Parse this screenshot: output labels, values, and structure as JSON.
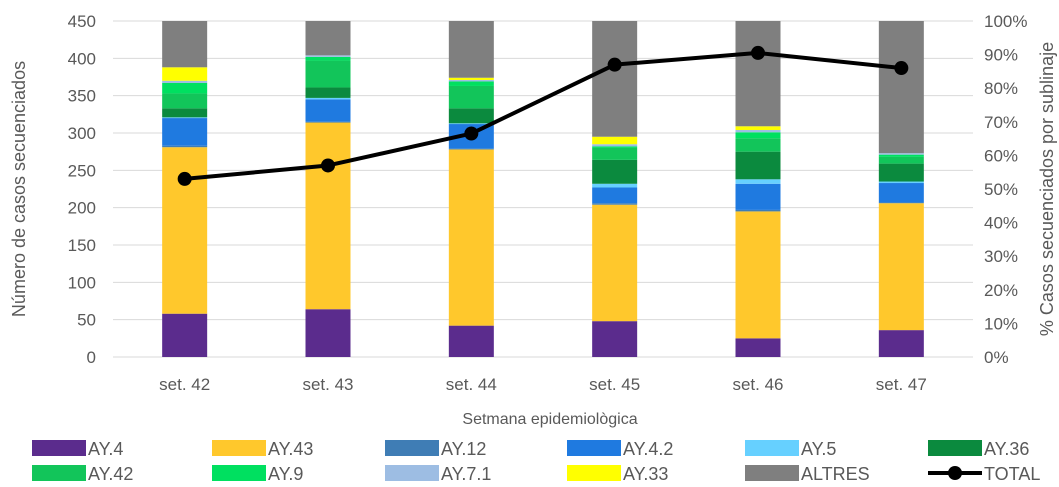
{
  "chart_data": {
    "type": "bar",
    "stacked": true,
    "categories": [
      "set. 42",
      "set. 43",
      "set. 44",
      "set. 45",
      "set. 46",
      "set. 47"
    ],
    "xlabel": "Setmana epidemiològica",
    "ylabel": "Número de casos secuenciados",
    "y2label": "% Casos secuenciados por sublinaje",
    "ylim": [
      0,
      450
    ],
    "yticks": [
      "0",
      "50",
      "100",
      "150",
      "200",
      "250",
      "300",
      "350",
      "400",
      "450"
    ],
    "y2lim": [
      0,
      100
    ],
    "y2ticks": [
      "0%",
      "10%",
      "20%",
      "30%",
      "40%",
      "50%",
      "60%",
      "70%",
      "80%",
      "90%",
      "100%"
    ],
    "grid": true,
    "legend_position": "bottom",
    "series": [
      {
        "name": "AY.4",
        "color": "#5b2c8d",
        "values": [
          58,
          64,
          42,
          48,
          25,
          36
        ]
      },
      {
        "name": "AY.43",
        "color": "#ffc82c",
        "values": [
          223,
          250,
          236,
          156,
          170,
          170
        ]
      },
      {
        "name": "AY.12",
        "color": "#3f7db5",
        "values": [
          2,
          1,
          1,
          2,
          2,
          1
        ]
      },
      {
        "name": "AY.4.2",
        "color": "#1f7ae0",
        "values": [
          37,
          30,
          33,
          21,
          35,
          26
        ]
      },
      {
        "name": "AY.5",
        "color": "#66d0ff",
        "values": [
          1,
          2,
          1,
          5,
          6,
          2
        ]
      },
      {
        "name": "AY.36",
        "color": "#0b8a3e",
        "values": [
          12,
          14,
          20,
          32,
          37,
          24
        ]
      },
      {
        "name": "AY.42",
        "color": "#12c55a",
        "values": [
          20,
          36,
          30,
          16,
          18,
          9
        ]
      },
      {
        "name": "AY.9",
        "color": "#00e060",
        "values": [
          14,
          5,
          6,
          2,
          8,
          3
        ]
      },
      {
        "name": "AY.7.1",
        "color": "#9dbde3",
        "values": [
          3,
          2,
          2,
          3,
          3,
          2
        ]
      },
      {
        "name": "AY.33",
        "color": "#ffff00",
        "values": [
          18,
          0,
          3,
          10,
          5,
          0
        ]
      },
      {
        "name": "ALTRES",
        "color": "#7f7f7f",
        "values": [
          62,
          46,
          76,
          155,
          141,
          177
        ]
      }
    ],
    "line": {
      "name": "TOTAL",
      "color": "#000000",
      "axis": "right",
      "values": [
        53,
        57,
        66.5,
        87,
        90.5,
        86
      ]
    }
  }
}
